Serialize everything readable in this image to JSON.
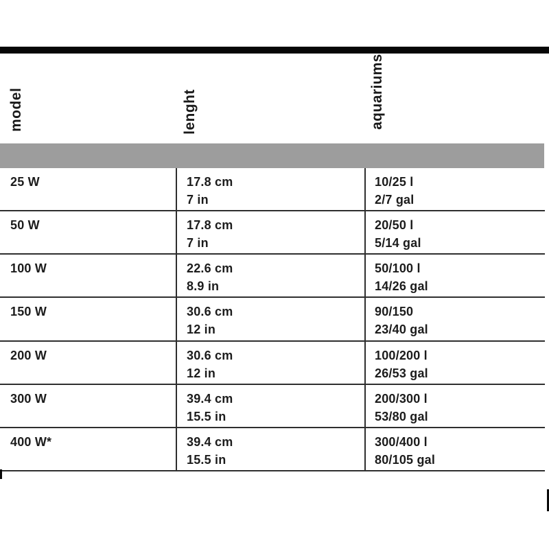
{
  "colors": {
    "top_bar": "#070707",
    "header_band": "#9d9d9d",
    "grid_line": "#2e2e2e",
    "text": "#1c1c1c",
    "background": "#ffffff"
  },
  "header": {
    "columns": [
      {
        "label": "model"
      },
      {
        "label": "lenght"
      },
      {
        "label": "aquariums"
      }
    ]
  },
  "table": {
    "rows": [
      {
        "model": "25 W",
        "cm": "17.8 cm",
        "in": "7 in",
        "liters": "10/25 l",
        "gallons": "2/7 gal"
      },
      {
        "model": "50 W",
        "cm": "17.8 cm",
        "in": "7 in",
        "liters": "20/50 l",
        "gallons": "5/14 gal"
      },
      {
        "model": "100 W",
        "cm": "22.6 cm",
        "in": "8.9 in",
        "liters": "50/100 l",
        "gallons": "14/26 gal"
      },
      {
        "model": "150 W",
        "cm": "30.6 cm",
        "in": "12 in",
        "liters": "90/150",
        "gallons": "23/40 gal"
      },
      {
        "model": "200 W",
        "cm": "30.6 cm",
        "in": "12 in",
        "liters": "100/200 l",
        "gallons": "26/53 gal"
      },
      {
        "model": "300 W",
        "cm": "39.4 cm",
        "in": "15.5 in",
        "liters": "200/300 l",
        "gallons": "53/80 gal"
      },
      {
        "model": "400 W*",
        "cm": "39.4 cm",
        "in": "15.5 in",
        "liters": "300/400 l",
        "gallons": "80/105 gal"
      }
    ]
  }
}
